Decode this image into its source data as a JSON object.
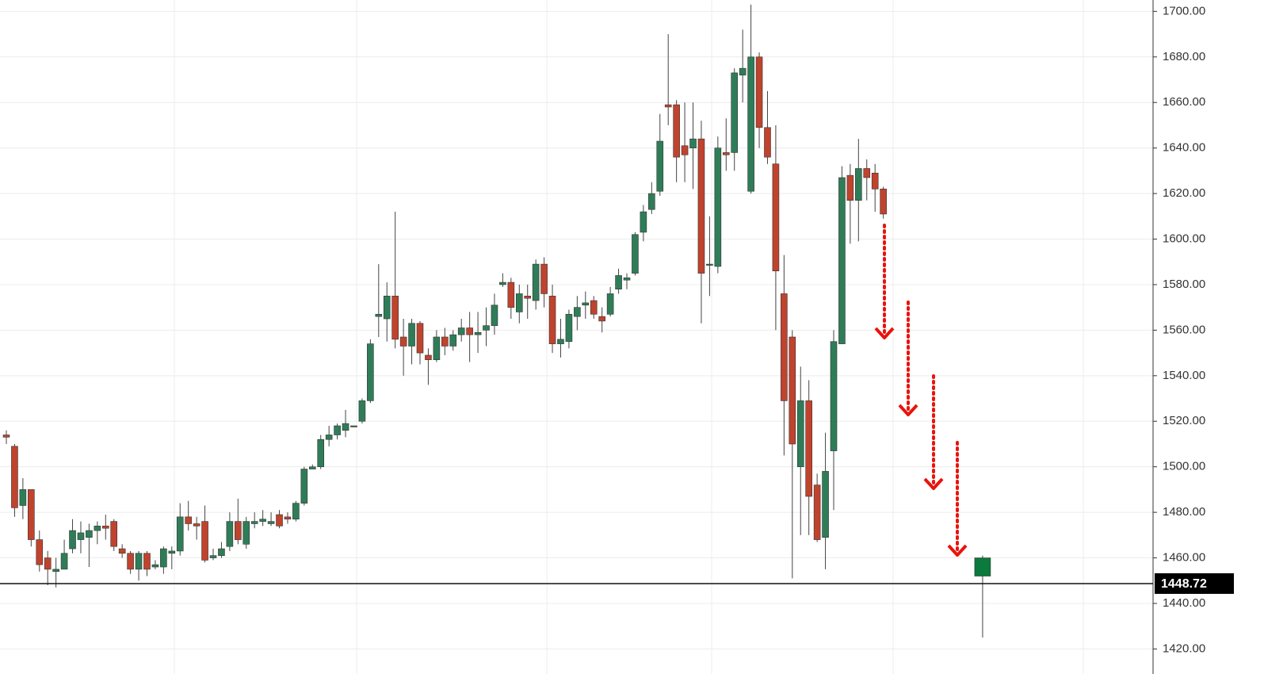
{
  "chart_data": {
    "type": "candlestick",
    "categories": [
      null,
      null,
      null,
      null,
      null,
      null,
      null,
      null,
      null,
      null,
      null,
      null,
      null,
      null,
      null,
      null,
      null,
      null,
      null,
      null,
      null,
      null,
      null,
      null,
      null,
      null,
      null,
      null,
      null,
      null,
      null,
      null,
      null,
      null,
      null,
      null,
      null,
      null,
      null,
      null,
      null,
      null,
      null,
      null,
      null,
      null,
      null,
      null,
      null,
      null,
      null,
      null,
      null,
      null,
      null,
      null,
      null,
      null,
      null,
      null,
      null,
      null,
      null,
      null,
      null,
      null,
      null,
      null,
      null,
      null,
      null,
      null,
      null,
      null,
      null,
      null,
      null,
      null,
      null,
      null,
      null,
      null,
      null,
      null,
      null,
      null,
      null,
      null,
      null,
      null,
      null,
      null,
      null,
      null,
      null,
      null,
      null,
      null,
      null,
      null,
      null,
      null,
      null,
      null,
      null,
      null,
      null,
      null,
      null,
      null,
      null,
      null,
      null,
      null,
      null,
      null,
      null,
      null,
      null
    ],
    "open": [
      1514,
      1509,
      1483,
      1490,
      1468,
      1460,
      1454,
      1455,
      1464,
      1468,
      1469,
      1472,
      1474,
      1476,
      1464,
      1462,
      1455,
      1462,
      1456,
      1456,
      1462,
      1463,
      1478,
      1475,
      1476,
      1460,
      1461,
      1465,
      1476,
      1466,
      1475,
      1476,
      1475,
      1479,
      1478,
      1477,
      1484,
      1499,
      1500,
      1512,
      1514,
      1516,
      1518,
      1520,
      1529,
      1566,
      1565,
      1575,
      1557,
      1553,
      1563,
      1549,
      1547,
      1557,
      1553,
      1558,
      1561,
      1558,
      1560,
      1562,
      1580,
      1581,
      1568,
      1575,
      1573,
      1589,
      1575,
      1554,
      1555,
      1566,
      1571,
      1573,
      1566,
      1567,
      1578,
      1582,
      1585,
      1603,
      1613,
      1621,
      1659,
      1659,
      1641,
      1640,
      1644,
      1589,
      1588,
      1638,
      1638,
      1672,
      1621,
      1680,
      1649,
      1633,
      1576,
      1557,
      1500,
      1529,
      1492,
      1469,
      1507,
      1554,
      1628,
      1617,
      1631,
      1629,
      1622,
      null,
      null,
      null,
      null,
      null,
      null,
      null,
      null,
      null,
      null,
      null,
      1452
    ],
    "high": [
      1516,
      1510,
      1495,
      1490,
      1472,
      1463,
      1460,
      1468,
      1477,
      1476,
      1475,
      1476,
      1479,
      1477,
      1466,
      1463,
      1463,
      1463,
      1459,
      1465,
      1465,
      1484,
      1485,
      1478,
      1483,
      1464,
      1467,
      1480,
      1486,
      1478,
      1480,
      1481,
      1480,
      1481,
      1480,
      1485,
      1500,
      1501,
      1514,
      1518,
      1519,
      1525,
      1518,
      1530,
      1556,
      1589,
      1581,
      1612,
      1565,
      1565,
      1564,
      1552,
      1560,
      1561,
      1560,
      1565,
      1568,
      1568,
      1570,
      1576,
      1585,
      1583,
      1580,
      1580,
      1591,
      1592,
      1580,
      1565,
      1569,
      1575,
      1577,
      1575,
      1570,
      1579,
      1587,
      1585,
      1603,
      1615,
      1625,
      1655,
      1690,
      1661,
      1660,
      1660,
      1652,
      1610,
      1645,
      1653,
      1675,
      1692,
      1703,
      1682,
      1665,
      1650,
      1593,
      1560,
      1544,
      1538,
      1497,
      1515,
      1560,
      1632,
      1633,
      1644,
      1635,
      1633,
      1623,
      null,
      null,
      null,
      null,
      null,
      null,
      null,
      null,
      null,
      null,
      null,
      1461
    ],
    "low": [
      1510,
      1478,
      1477,
      1465,
      1454,
      1448,
      1447,
      1455,
      1462,
      1462,
      1456,
      1466,
      1468,
      1463,
      1460,
      1453,
      1450,
      1452,
      1455,
      1453,
      1455,
      1461,
      1472,
      1468,
      1458,
      1459,
      1460,
      1463,
      1466,
      1464,
      1473,
      1474,
      1474,
      1473,
      1475,
      1476,
      1483,
      1499,
      1499,
      1509,
      1512,
      1513,
      1518,
      1519,
      1528,
      1557,
      1555,
      1552,
      1540,
      1545,
      1545,
      1536,
      1546,
      1549,
      1551,
      1555,
      1546,
      1550,
      1553,
      1558,
      1579,
      1565,
      1563,
      1565,
      1569,
      1570,
      1550,
      1548,
      1552,
      1560,
      1565,
      1565,
      1559,
      1566,
      1576,
      1578,
      1584,
      1599,
      1611,
      1619,
      1650,
      1625,
      1625,
      1622,
      1563,
      1575,
      1585,
      1630,
      1630,
      1660,
      1620,
      1640,
      1633,
      1560,
      1505,
      1451,
      1470,
      1470,
      1467,
      1455,
      1481,
      1554,
      1598,
      1599,
      1617,
      1612,
      1609,
      null,
      null,
      null,
      null,
      null,
      null,
      null,
      null,
      null,
      null,
      null,
      1425
    ],
    "close": [
      1513,
      1482,
      1490,
      1468,
      1457,
      1455,
      1455,
      1462,
      1472,
      1471,
      1472,
      1474,
      1473,
      1465,
      1462,
      1455,
      1462,
      1455,
      1457,
      1464,
      1463,
      1478,
      1475,
      1474,
      1459,
      1461,
      1464,
      1476,
      1468,
      1476,
      1476,
      1477,
      1476,
      1474,
      1477,
      1484,
      1499,
      1500,
      1512,
      1514,
      1518,
      1519,
      1518,
      1529,
      1554,
      1567,
      1575,
      1556,
      1553,
      1563,
      1550,
      1547,
      1557,
      1553,
      1558,
      1561,
      1558,
      1559,
      1562,
      1571,
      1581,
      1570,
      1576,
      1574,
      1589,
      1576,
      1554,
      1556,
      1567,
      1570,
      1572,
      1567,
      1564,
      1576,
      1584,
      1583,
      1602,
      1612,
      1620,
      1643,
      1658,
      1636,
      1637,
      1644,
      1585,
      1589,
      1640,
      1637,
      1673,
      1675,
      1680,
      1649,
      1636,
      1586,
      1529,
      1510,
      1529,
      1487,
      1468,
      1498,
      1555,
      1627,
      1617,
      1631,
      1627,
      1622,
      1611,
      null,
      null,
      null,
      null,
      null,
      null,
      null,
      null,
      null,
      null,
      null,
      1460
    ],
    "up_color": "#2f7d58",
    "down_color": "#c0432d",
    "last_price": 1448.72,
    "ylim": [
      1409,
      1705
    ],
    "yticks": [
      {
        "value": 1420,
        "label": "1420.00"
      },
      {
        "value": 1440,
        "label": "1440.00"
      },
      {
        "value": 1460,
        "label": "1460.00"
      },
      {
        "value": 1480,
        "label": "1480.00"
      },
      {
        "value": 1500,
        "label": "1500.00"
      },
      {
        "value": 1520,
        "label": "1520.00"
      },
      {
        "value": 1540,
        "label": "1540.00"
      },
      {
        "value": 1560,
        "label": "1560.00"
      },
      {
        "value": 1580,
        "label": "1580.00"
      },
      {
        "value": 1600,
        "label": "1600.00"
      },
      {
        "value": 1620,
        "label": "1620.00"
      },
      {
        "value": 1640,
        "label": "1640.00"
      },
      {
        "value": 1660,
        "label": "1660.00"
      },
      {
        "value": 1680,
        "label": "1680.00"
      },
      {
        "value": 1700,
        "label": "1700.00"
      }
    ],
    "grid": true
  }
}
